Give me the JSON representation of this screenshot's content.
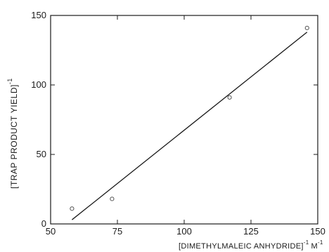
{
  "chart_data": {
    "type": "scatter",
    "xlabel": "[DIMETHYLMALEIC ANHYDRIDE]",
    "xlabel_exponent": "-1",
    "xlabel_unit": "M",
    "xlabel_unit_exponent": "-1",
    "ylabel": "[TRAP PRODUCT YIELD]",
    "ylabel_exponent": "-1",
    "xlim": [
      50,
      150
    ],
    "ylim": [
      0,
      150
    ],
    "x_ticks": [
      50,
      75,
      100,
      125,
      150
    ],
    "y_ticks": [
      0,
      50,
      100,
      150
    ],
    "series": [
      {
        "points": [
          {
            "x": 58,
            "y": 11
          },
          {
            "x": 73,
            "y": 18
          },
          {
            "x": 117,
            "y": 91
          },
          {
            "x": 146,
            "y": 141
          }
        ]
      }
    ],
    "fit_line": {
      "x": [
        58,
        146
      ],
      "y": [
        3,
        138
      ]
    },
    "grid": false,
    "colors": {
      "axis": "#1a1a1a",
      "line": "#1a1a1a",
      "marker": "#555555"
    }
  }
}
